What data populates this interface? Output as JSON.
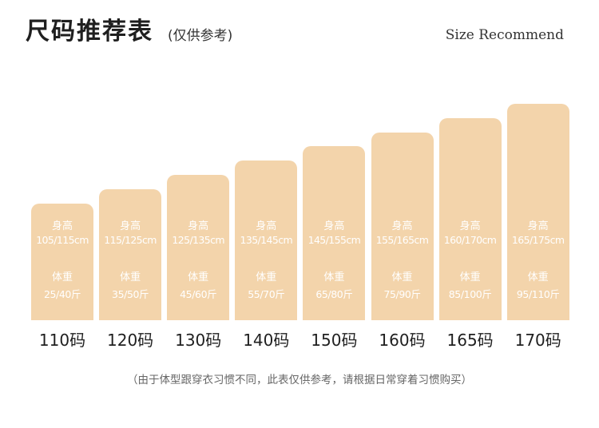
{
  "header": {
    "title": "尺码推荐表",
    "subtitle": "(仅供参考)",
    "en_title": "Size Recommend"
  },
  "chart_data": {
    "type": "bar",
    "categories": [
      "110码",
      "120码",
      "130码",
      "140码",
      "150码",
      "160码",
      "165码",
      "170码"
    ],
    "height_label": "身高",
    "weight_label": "体重",
    "heights": [
      "105/115cm",
      "115/125cm",
      "125/135cm",
      "135/145cm",
      "145/155cm",
      "155/165cm",
      "160/170cm",
      "165/175cm"
    ],
    "weights": [
      "25/40斤",
      "35/50斤",
      "45/60斤",
      "55/70斤",
      "65/80斤",
      "75/90斤",
      "85/100斤",
      "95/110斤"
    ],
    "values": [
      1,
      2,
      3,
      4,
      5,
      6,
      7,
      8
    ],
    "bar_color": "#f3d4ab",
    "text_color": "#ffffff"
  },
  "footer": {
    "note": "（由于体型跟穿衣习惯不同，此表仅供参考，请根据日常穿着习惯购买）"
  }
}
